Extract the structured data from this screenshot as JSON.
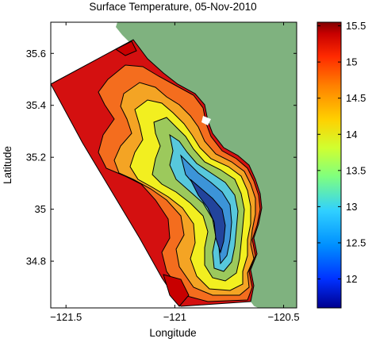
{
  "chart_data": {
    "type": "heatmap",
    "title": "Surface Temperature, 05-Nov-2010",
    "xlabel": "Longitude",
    "ylabel": "Latitude",
    "xlim": [
      -121.57,
      -120.44
    ],
    "ylim": [
      34.62,
      35.72
    ],
    "x_ticks": [
      {
        "value": -121.5,
        "label": "−121.5"
      },
      {
        "value": -121,
        "label": "−121"
      },
      {
        "value": -120.5,
        "label": "−120.5"
      }
    ],
    "y_ticks": [
      {
        "value": 34.8,
        "label": "34.8"
      },
      {
        "value": 35,
        "label": "35"
      },
      {
        "value": 35.2,
        "label": "35.2"
      },
      {
        "value": 35.4,
        "label": "35.4"
      },
      {
        "value": 35.6,
        "label": "35.6"
      }
    ],
    "colorbar": {
      "limits": [
        11.6,
        15.55
      ],
      "ticks": [
        {
          "value": 12,
          "label": "12"
        },
        {
          "value": 12.5,
          "label": "12.5"
        },
        {
          "value": 13,
          "label": "13"
        },
        {
          "value": 13.5,
          "label": "13.5"
        },
        {
          "value": 14,
          "label": "14"
        },
        {
          "value": 14.5,
          "label": "14.5"
        },
        {
          "value": 15,
          "label": "15"
        },
        {
          "value": 15.5,
          "label": "15.5"
        }
      ],
      "colors": [
        "#7f0000",
        "#c80000",
        "#ff2a00",
        "#ff7f00",
        "#ffd000",
        "#d0ff30",
        "#7fff7f",
        "#30d0ff",
        "#0090ff",
        "#0030ff",
        "#00008f"
      ]
    },
    "land_color": "#7fb27f",
    "temperature_levels": [
      {
        "level": 15.3,
        "color": "#d41010"
      },
      {
        "level": 14.8,
        "color": "#f46d1e"
      },
      {
        "level": 14.4,
        "color": "#f4a424"
      },
      {
        "level": 14.0,
        "color": "#f2ef20"
      },
      {
        "level": 13.7,
        "color": "#9cc95c"
      },
      {
        "level": 13.3,
        "color": "#57c8dc"
      },
      {
        "level": 12.8,
        "color": "#3c94d8"
      },
      {
        "level": 12.0,
        "color": "#22449c"
      }
    ]
  }
}
